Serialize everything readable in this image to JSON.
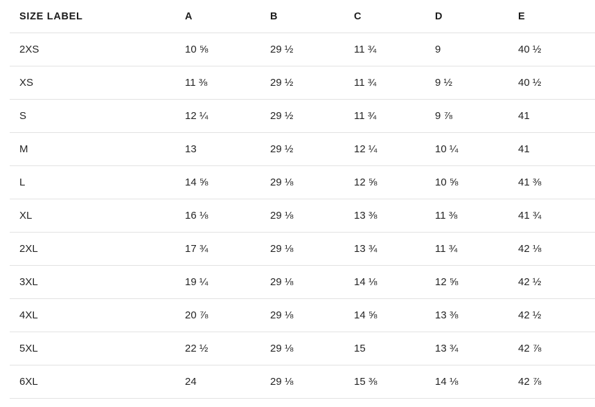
{
  "colors": {
    "background": "#ffffff",
    "border": "#e2e2e2",
    "header_text": "#1d1d1d",
    "cell_text": "#242424"
  },
  "table": {
    "columns": [
      "SIZE LABEL",
      "A",
      "B",
      "C",
      "D",
      "E"
    ],
    "rows": [
      [
        "2XS",
        "10 ⅝",
        "29 ½",
        "11 ¾",
        "9",
        "40 ½"
      ],
      [
        "XS",
        "11 ⅜",
        "29 ½",
        "11 ¾",
        "9 ½",
        "40 ½"
      ],
      [
        "S",
        "12 ¼",
        "29 ½",
        "11 ¾",
        "9 ⅞",
        "41"
      ],
      [
        "M",
        "13",
        "29 ½",
        "12 ¼",
        "10 ¼",
        "41"
      ],
      [
        "L",
        "14 ⅝",
        "29 ⅛",
        "12 ⅝",
        "10 ⅝",
        "41 ⅜"
      ],
      [
        "XL",
        "16 ⅛",
        "29 ⅛",
        "13 ⅜",
        "11 ⅜",
        "41 ¾"
      ],
      [
        "2XL",
        "17 ¾",
        "29 ⅛",
        "13 ¾",
        "11 ¾",
        "42 ⅛"
      ],
      [
        "3XL",
        "19 ¼",
        "29 ⅛",
        "14 ⅛",
        "12 ⅝",
        "42 ½"
      ],
      [
        "4XL",
        "20 ⅞",
        "29 ⅛",
        "14 ⅝",
        "13 ⅜",
        "42 ½"
      ],
      [
        "5XL",
        "22 ½",
        "29 ⅛",
        "15",
        "13 ¾",
        "42 ⅞"
      ],
      [
        "6XL",
        "24",
        "29 ⅛",
        "15 ⅜",
        "14 ⅛",
        "42 ⅞"
      ]
    ]
  }
}
